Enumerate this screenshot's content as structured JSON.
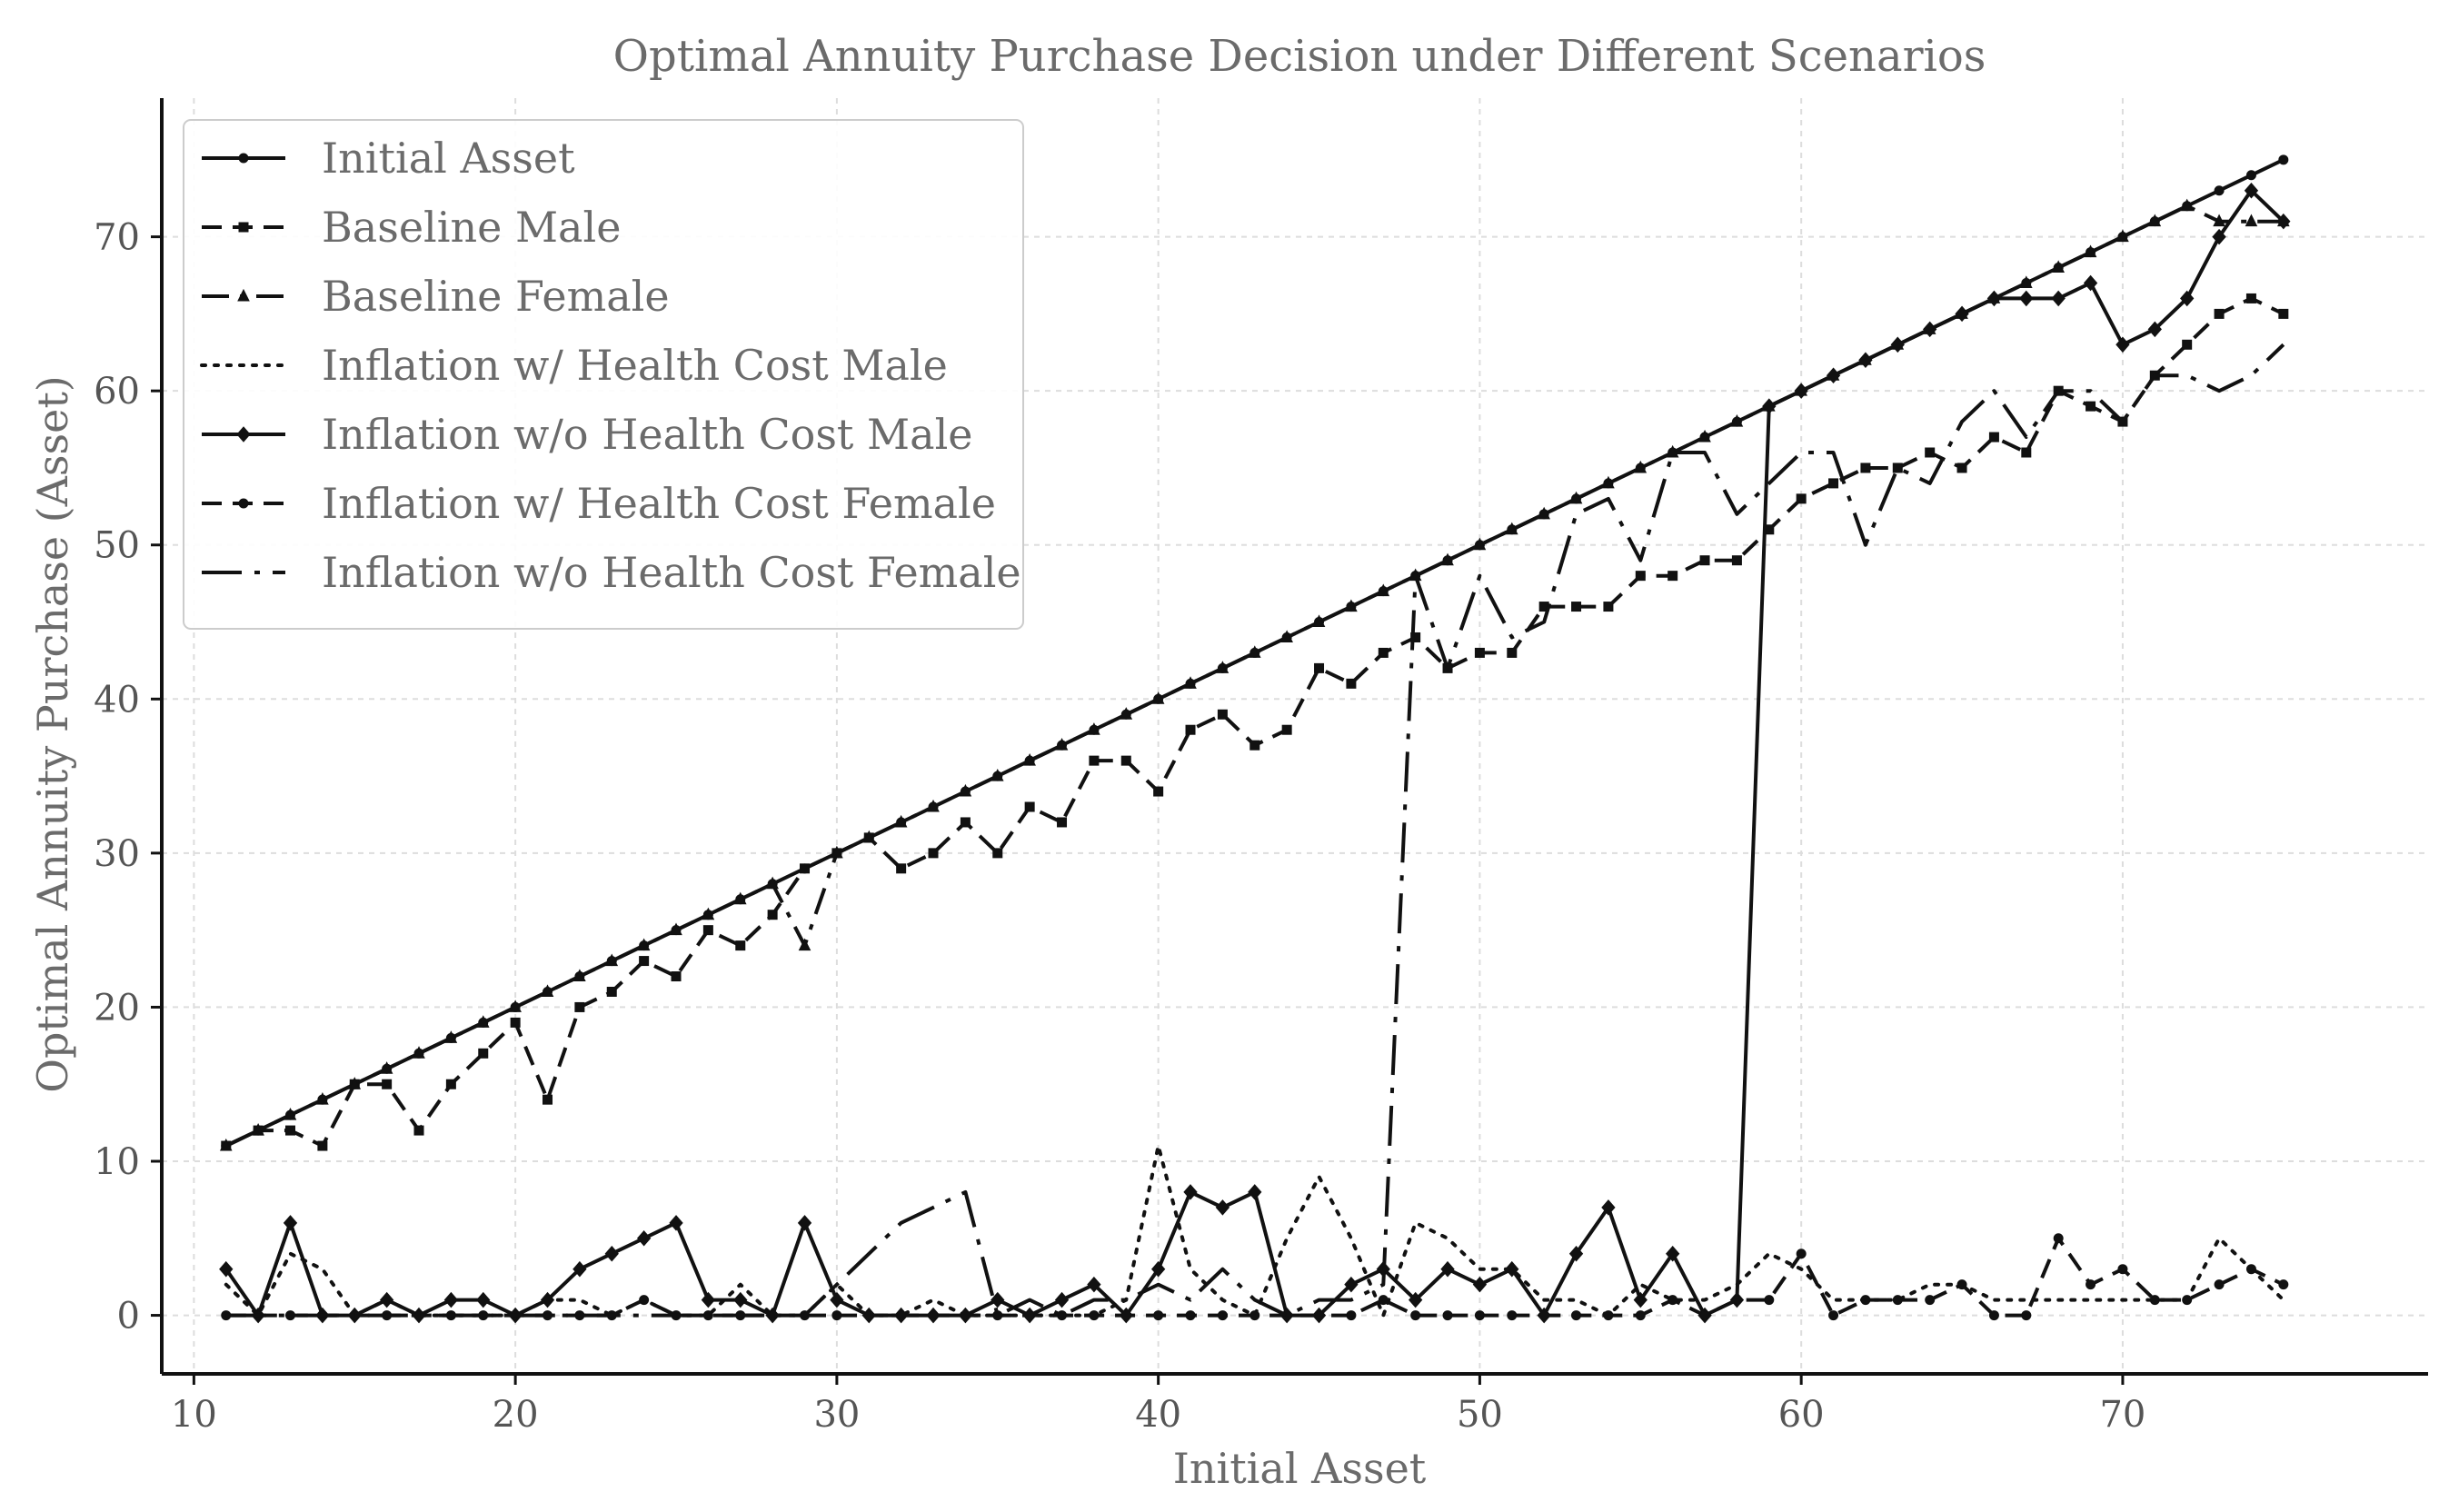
{
  "chart_data": {
    "type": "line",
    "title": "Optimal Annuity Purchase Decision under Different Scenarios",
    "xlabel": "Initial Asset",
    "ylabel": "Optimal Annuity Purchase (Asset)",
    "xlim": [
      9,
      79.5
    ],
    "ylim": [
      -3.8,
      79
    ],
    "xticks": [
      10,
      20,
      30,
      40,
      50,
      60,
      70
    ],
    "yticks": [
      0,
      10,
      20,
      30,
      40,
      50,
      60,
      70
    ],
    "grid": true,
    "legend_position": "top-left",
    "x": [
      11,
      12,
      13,
      14,
      15,
      16,
      17,
      18,
      19,
      20,
      21,
      22,
      23,
      24,
      25,
      26,
      27,
      28,
      29,
      30,
      31,
      32,
      33,
      34,
      35,
      36,
      37,
      38,
      39,
      40,
      41,
      42,
      43,
      44,
      45,
      46,
      47,
      48,
      49,
      50,
      51,
      52,
      53,
      54,
      55,
      56,
      57,
      58,
      59,
      60,
      61,
      62,
      63,
      64,
      65,
      66,
      67,
      68,
      69,
      70,
      71,
      72,
      73,
      74,
      75
    ],
    "series": [
      {
        "name": "Initial Asset",
        "style": "solid",
        "marker": "dot",
        "color": "#111111",
        "values": [
          11,
          12,
          13,
          14,
          15,
          16,
          17,
          18,
          19,
          20,
          21,
          22,
          23,
          24,
          25,
          26,
          27,
          28,
          29,
          30,
          31,
          32,
          33,
          34,
          35,
          36,
          37,
          38,
          39,
          40,
          41,
          42,
          43,
          44,
          45,
          46,
          47,
          48,
          49,
          50,
          51,
          52,
          53,
          54,
          55,
          56,
          57,
          58,
          59,
          60,
          61,
          62,
          63,
          64,
          65,
          66,
          67,
          68,
          69,
          70,
          71,
          72,
          73,
          74,
          75
        ]
      },
      {
        "name": "Baseline Male",
        "style": "dashed",
        "marker": "square",
        "color": "#111111",
        "values": [
          11,
          12,
          12,
          11,
          15,
          15,
          12,
          15,
          17,
          19,
          14,
          20,
          21,
          23,
          22,
          25,
          24,
          26,
          29,
          30,
          31,
          29,
          30,
          32,
          30,
          33,
          32,
          36,
          36,
          34,
          38,
          39,
          37,
          38,
          42,
          41,
          43,
          44,
          42,
          43,
          43,
          46,
          46,
          46,
          48,
          48,
          49,
          49,
          51,
          53,
          54,
          55,
          55,
          56,
          55,
          57,
          56,
          60,
          59,
          58,
          61,
          63,
          65,
          66,
          65
        ]
      },
      {
        "name": "Baseline Female",
        "style": "dashdot",
        "marker": "triangle",
        "color": "#111111",
        "values": [
          11,
          12,
          13,
          14,
          15,
          16,
          17,
          18,
          19,
          20,
          21,
          22,
          23,
          24,
          25,
          26,
          27,
          28,
          24,
          30,
          31,
          32,
          33,
          34,
          35,
          36,
          37,
          38,
          39,
          40,
          41,
          42,
          43,
          44,
          45,
          46,
          47,
          48,
          49,
          50,
          51,
          52,
          53,
          54,
          55,
          56,
          57,
          58,
          59,
          60,
          61,
          62,
          63,
          64,
          65,
          66,
          67,
          68,
          69,
          70,
          71,
          72,
          71,
          71,
          71
        ]
      },
      {
        "name": "Inflation w/ Health Cost Male",
        "style": "dotted",
        "marker": "none",
        "color": "#111111",
        "values": [
          2,
          0,
          4,
          3,
          0,
          1,
          0,
          0,
          0,
          0,
          1,
          1,
          0,
          1,
          0,
          0,
          2,
          0,
          0,
          2,
          0,
          0,
          1,
          0,
          0,
          0,
          0,
          0,
          1,
          11,
          3,
          1,
          0,
          5,
          9,
          5,
          0,
          6,
          5,
          3,
          3,
          1,
          1,
          0,
          2,
          1,
          1,
          2,
          4,
          3,
          1,
          1,
          1,
          2,
          2,
          1,
          1,
          1,
          1,
          1,
          1,
          1,
          5,
          3,
          1
        ]
      },
      {
        "name": "Inflation w/o Health Cost Male",
        "style": "solid",
        "marker": "diamond",
        "color": "#111111",
        "values": [
          3,
          0,
          6,
          0,
          0,
          1,
          0,
          1,
          1,
          0,
          1,
          3,
          4,
          5,
          6,
          1,
          1,
          0,
          6,
          1,
          0,
          0,
          0,
          0,
          1,
          0,
          1,
          2,
          0,
          3,
          8,
          7,
          8,
          0,
          0,
          2,
          3,
          1,
          3,
          2,
          3,
          0,
          4,
          7,
          1,
          4,
          0,
          1,
          59,
          60,
          61,
          62,
          63,
          64,
          65,
          66,
          66,
          66,
          67,
          63,
          64,
          66,
          70,
          73,
          71
        ]
      },
      {
        "name": "Inflation w/ Health Cost Female",
        "style": "dashed",
        "marker": "dot",
        "color": "#111111",
        "values": [
          0,
          0,
          0,
          0,
          0,
          0,
          0,
          0,
          0,
          0,
          0,
          0,
          0,
          1,
          0,
          0,
          0,
          0,
          0,
          0,
          0,
          0,
          0,
          0,
          0,
          0,
          0,
          0,
          0,
          0,
          0,
          0,
          0,
          0,
          0,
          0,
          1,
          0,
          0,
          0,
          0,
          0,
          0,
          0,
          0,
          1,
          0,
          1,
          1,
          4,
          0,
          1,
          1,
          1,
          2,
          0,
          0,
          5,
          2,
          3,
          1,
          1,
          2,
          3,
          2
        ]
      },
      {
        "name": "Inflation w/o Health Cost Female",
        "style": "longdashdot",
        "marker": "none",
        "color": "#111111",
        "values": [
          0,
          0,
          0,
          0,
          0,
          0,
          0,
          0,
          0,
          0,
          0,
          0,
          0,
          0,
          0,
          0,
          0,
          0,
          0,
          2,
          4,
          6,
          7,
          8,
          0,
          1,
          0,
          1,
          1,
          2,
          1,
          3,
          1,
          0,
          1,
          1,
          2,
          48,
          42,
          48,
          44,
          45,
          52,
          53,
          49,
          56,
          56,
          52,
          54,
          56,
          56,
          50,
          55,
          54,
          58,
          60,
          57,
          60,
          60,
          58,
          61,
          61,
          60,
          61,
          63
        ]
      }
    ]
  }
}
